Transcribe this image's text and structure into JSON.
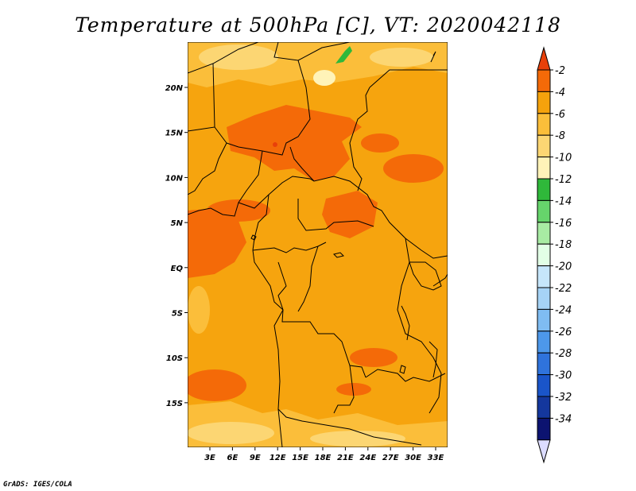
{
  "title": "Temperature at 500hPa [C], VT: 2020042118",
  "credit": "GrADS: IGES/COLA",
  "axes": {
    "lon_labels": [
      "3E",
      "6E",
      "9E",
      "12E",
      "15E",
      "18E",
      "21E",
      "24E",
      "27E",
      "30E",
      "33E"
    ],
    "lat_labels": [
      "20N",
      "15N",
      "10N",
      "5N",
      "EQ",
      "5S",
      "10S",
      "15S"
    ]
  },
  "colorbar": {
    "labels": [
      "-2",
      "-4",
      "-6",
      "-8",
      "-10",
      "-12",
      "-14",
      "-16",
      "-18",
      "-20",
      "-22",
      "-24",
      "-26",
      "-28",
      "-30",
      "-32",
      "-34"
    ],
    "colors": [
      "#e8400a",
      "#f46a08",
      "#f5a20c",
      "#fbbe3a",
      "#fcd673",
      "#fff3b8",
      "#2fb83a",
      "#66d46b",
      "#a8eba3",
      "#e2ffe6",
      "#c6e6fb",
      "#a6d3f6",
      "#7fbcf2",
      "#4d98ea",
      "#2f73dc",
      "#1a55c9",
      "#14379d",
      "#0c1370",
      "#dcdcff"
    ]
  },
  "map": {
    "colors": {
      "base": "#f6a40e",
      "warm": "#f46a08",
      "warmest": "#e8400a",
      "cool": "#fbbe3a",
      "cooler": "#fcd673",
      "coolest": "#fff3b8",
      "green": "#2fb83a"
    }
  }
}
